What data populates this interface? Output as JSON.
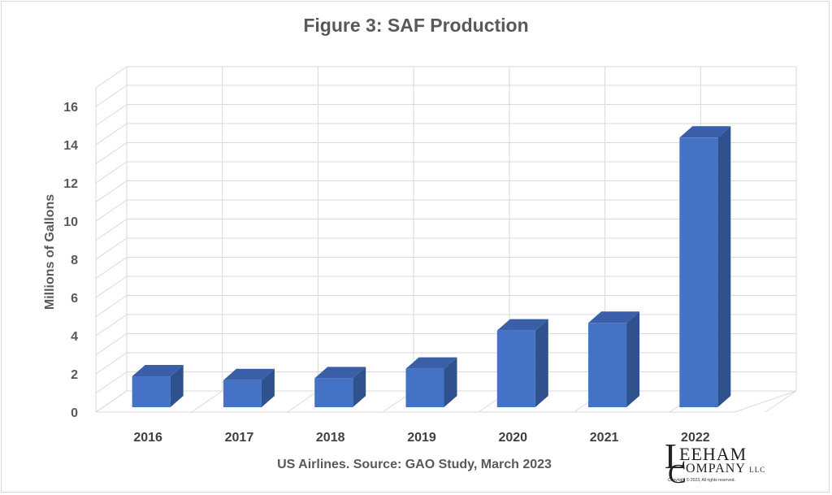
{
  "chart_data": {
    "type": "bar",
    "title": "Figure 3: SAF Production",
    "ylabel": "Millions of Gallons",
    "xlabel": "US Airlines. Source: GAO Study, March 2023",
    "categories": [
      "2016",
      "2017",
      "2018",
      "2019",
      "2020",
      "2021",
      "2022"
    ],
    "values": [
      1.7,
      1.5,
      1.6,
      2.1,
      4.1,
      4.5,
      14.2
    ],
    "ylim": [
      0,
      16
    ],
    "yticks": [
      "0",
      "2",
      "4",
      "6",
      "8",
      "10",
      "12",
      "14",
      "16"
    ],
    "grid": true,
    "bar_color": "#4472c4",
    "bar_side_color": "#2f528f",
    "bar_top_color": "#3a5fa8"
  },
  "logo": {
    "initial_l": "L",
    "word1": "EEHAM",
    "initial_c": "C",
    "word2": "OMPANY",
    "suffix": "LLC",
    "copyright": "Copyright © 2023, All rights reserved."
  }
}
